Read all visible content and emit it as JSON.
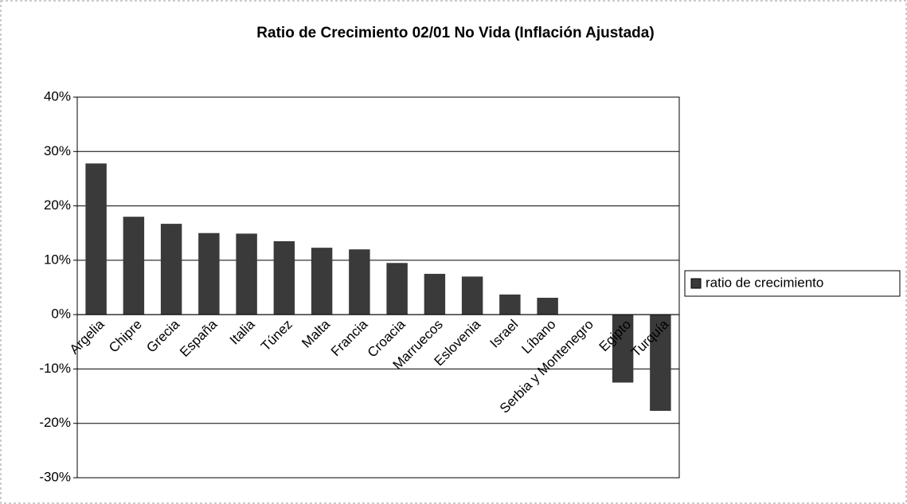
{
  "chart_data": {
    "type": "bar",
    "title": "Ratio de Crecimiento 02/01 No Vida (Inflación Ajustada)",
    "categories": [
      "Argelia",
      "Chipre",
      "Grecia",
      "España",
      "Italia",
      "Túnez",
      "Malta",
      "Francia",
      "Croacia",
      "Marruecos",
      "Eslovenia",
      "Israel",
      "Líbano",
      "Serbia y Montenegro",
      "Egipto",
      "Turquía"
    ],
    "series": [
      {
        "name": "ratio de crecimiento",
        "color": "#3a3a3a",
        "values": [
          27.8,
          18,
          16.7,
          15,
          14.9,
          13.5,
          12.3,
          12,
          9.5,
          7.5,
          7,
          3.7,
          3.1,
          0,
          -12.5,
          -17.7
        ]
      }
    ],
    "ylim": [
      -30,
      40
    ],
    "yticks": [
      {
        "value": -30,
        "label": "-30%"
      },
      {
        "value": -20,
        "label": "-20%"
      },
      {
        "value": -10,
        "label": "-10%"
      },
      {
        "value": 0,
        "label": "0%"
      },
      {
        "value": 10,
        "label": "10%"
      },
      {
        "value": 20,
        "label": "20%"
      },
      {
        "value": 30,
        "label": "30%"
      },
      {
        "value": 40,
        "label": "40%"
      }
    ],
    "grid": true,
    "legend": "right"
  }
}
